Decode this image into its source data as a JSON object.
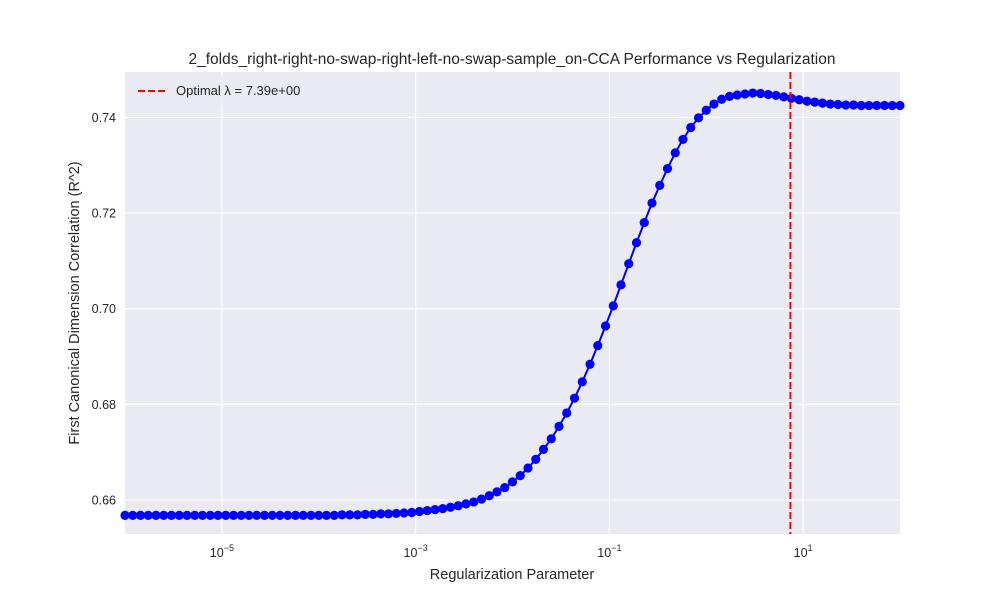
{
  "chart_data": {
    "type": "line",
    "title": "2_folds_right-right-no-swap-right-left-no-swap-sample_on-CCA Performance vs Regularization",
    "xlabel": "Regularization Parameter",
    "ylabel": "First Canonical Dimension Correlation (R^2)",
    "x_scale": "log",
    "x_range": [
      1e-06,
      100.0
    ],
    "x_ticks": [
      {
        "value": 1e-05,
        "base": "10",
        "exp": "−5"
      },
      {
        "value": 0.001,
        "base": "10",
        "exp": "−3"
      },
      {
        "value": 0.1,
        "base": "10",
        "exp": "−1"
      },
      {
        "value": 10,
        "base": "10",
        "exp": "1"
      }
    ],
    "ylim": [
      0.6529,
      0.7495
    ],
    "y_ticks": [
      {
        "value": 0.66,
        "label": "0.66"
      },
      {
        "value": 0.68,
        "label": "0.68"
      },
      {
        "value": 0.7,
        "label": "0.70"
      },
      {
        "value": 0.72,
        "label": "0.72"
      },
      {
        "value": 0.74,
        "label": "0.74"
      }
    ],
    "grid": true,
    "legend_position": "top-left",
    "series": [
      {
        "role": "data",
        "color": "#0000ff",
        "x_start": 1e-06,
        "x_end": 100,
        "points_per_decade": 12.5,
        "y": [
          0.6568,
          0.6568,
          0.6568,
          0.6568,
          0.6568,
          0.6568,
          0.6568,
          0.6568,
          0.6568,
          0.6568,
          0.6568,
          0.6568,
          0.6568,
          0.6568,
          0.6568,
          0.6568,
          0.6568,
          0.6568,
          0.6568,
          0.6568,
          0.6568,
          0.6568,
          0.6568,
          0.6568,
          0.6568,
          0.6568,
          0.6568,
          0.6568,
          0.6569,
          0.6569,
          0.6569,
          0.657,
          0.657,
          0.6571,
          0.6571,
          0.6572,
          0.6573,
          0.6574,
          0.6576,
          0.6578,
          0.658,
          0.6582,
          0.6585,
          0.6588,
          0.6592,
          0.6596,
          0.6602,
          0.6609,
          0.6617,
          0.6626,
          0.6638,
          0.6651,
          0.6667,
          0.6685,
          0.6706,
          0.6728,
          0.6754,
          0.6782,
          0.6813,
          0.6847,
          0.6884,
          0.6923,
          0.6964,
          0.7006,
          0.705,
          0.7094,
          0.7138,
          0.718,
          0.7221,
          0.7258,
          0.7293,
          0.7326,
          0.7354,
          0.7379,
          0.7399,
          0.7415,
          0.7428,
          0.7438,
          0.7444,
          0.7447,
          0.7449,
          0.7451,
          0.745,
          0.7448,
          0.7446,
          0.7443,
          0.744,
          0.7437,
          0.7434,
          0.7432,
          0.743,
          0.7428,
          0.7427,
          0.7426,
          0.7426,
          0.7425,
          0.7425,
          0.7425,
          0.7425,
          0.7425,
          0.7425
        ]
      },
      {
        "role": "vline",
        "name": "Optimal λ = 7.39e+00",
        "x": 7.39,
        "color": "#ff0000"
      }
    ]
  }
}
